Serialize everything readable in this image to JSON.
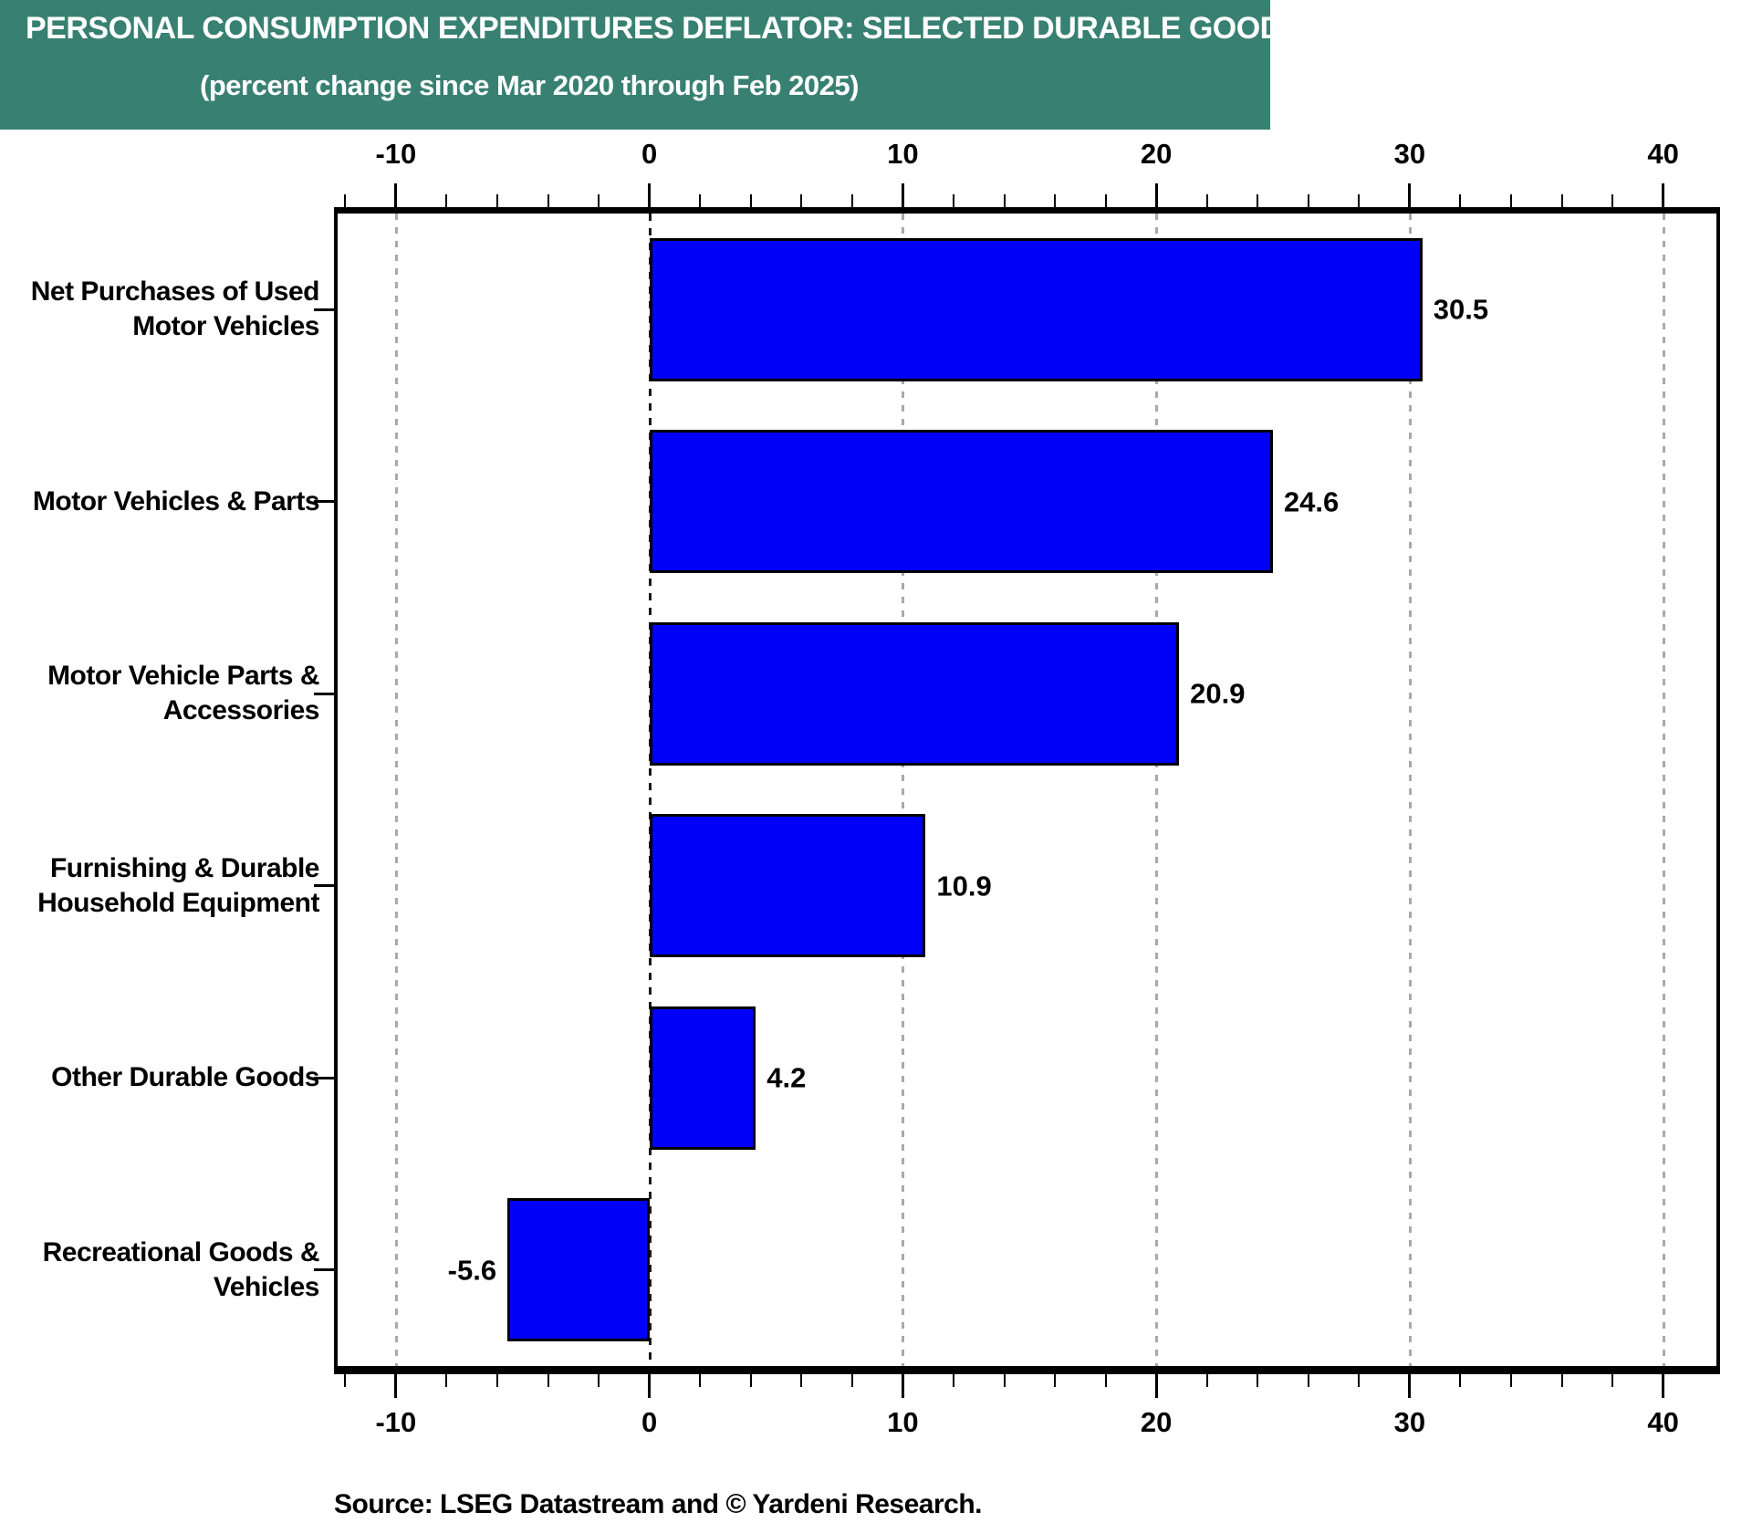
{
  "header": {
    "title": "PERSONAL CONSUMPTION EXPENDITURES DEFLATOR: SELECTED DURABLE GOODS",
    "subtitle": "(percent change since Mar 2020 through Feb 2025)",
    "bg_color": "#388071",
    "text_color": "#FFFFFF"
  },
  "source_note": "Source: LSEG Datastream and © Yardeni Research.",
  "chart_data": {
    "type": "bar",
    "orientation": "horizontal",
    "title": "PERSONAL CONSUMPTION EXPENDITURES DEFLATOR: SELECTED DURABLE GOODS",
    "subtitle": "(percent change since Mar 2020 through Feb 2025)",
    "categories": [
      [
        "Net Purchases of Used",
        "Motor Vehicles"
      ],
      [
        "Motor Vehicles & Parts"
      ],
      [
        "Motor Vehicle Parts &",
        "Accessories"
      ],
      [
        "Furnishing & Durable",
        "Household Equipment"
      ],
      [
        "Other Durable Goods"
      ],
      [
        "Recreational Goods &",
        "Vehicles"
      ]
    ],
    "values": [
      30.5,
      24.6,
      20.9,
      10.9,
      4.2,
      -5.6
    ],
    "value_labels": [
      "30.5",
      "24.6",
      "20.9",
      "10.9",
      "4.2",
      "-5.6"
    ],
    "xlabel": "",
    "ylabel": "",
    "axis": {
      "min": -12.3,
      "max": 42.1,
      "major_ticks": [
        -10,
        0,
        10,
        20,
        30,
        40
      ],
      "major_tick_labels": [
        "-10",
        "0",
        "10",
        "20",
        "30",
        "40"
      ],
      "minor_tick_step": 2,
      "grid": "dashed vertical gridlines at major ticks, solid-dashed black zero line",
      "mirrored_axes": "ticks and labels on top and bottom"
    },
    "colors": {
      "bar_fill": "#0000FA",
      "bar_border": "#000000",
      "gridline": "#A9A9A9",
      "zero_line": "#1A1A1A"
    }
  }
}
